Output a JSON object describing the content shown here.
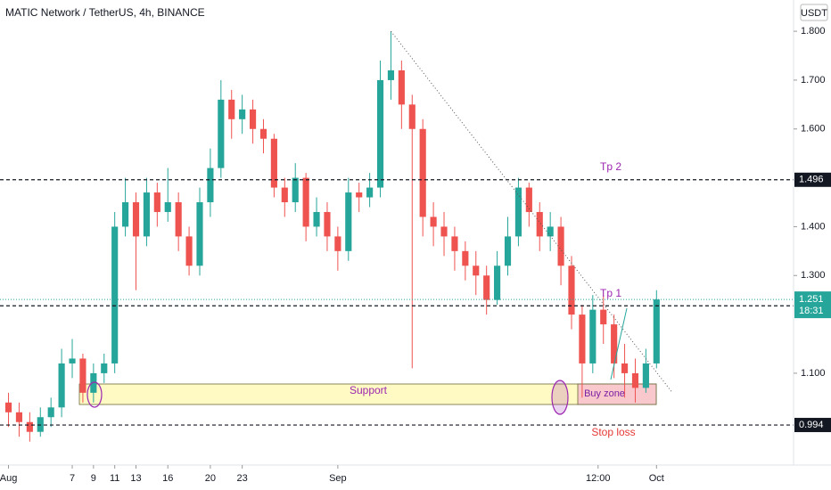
{
  "chart_data": {
    "type": "candlestick",
    "title": "MATIC Network / TetherUS, 4h, BINANCE",
    "currency": "USDT",
    "x": [
      1,
      2,
      3,
      4,
      5,
      6,
      7,
      8,
      9,
      10,
      11,
      12,
      13,
      14,
      15,
      16,
      17,
      18,
      19,
      20,
      21,
      22,
      23,
      24,
      25,
      26,
      27,
      28,
      29,
      30,
      31,
      32,
      33,
      34,
      35,
      36,
      37,
      38,
      39,
      40,
      41,
      42,
      43,
      44,
      45,
      46,
      47,
      48,
      49,
      50,
      51,
      52,
      53,
      54,
      55,
      56,
      57,
      58,
      59,
      60,
      61,
      62
    ],
    "open": [
      1.04,
      1.02,
      1.0,
      0.98,
      1.01,
      1.03,
      1.12,
      1.13,
      1.06,
      1.1,
      1.12,
      1.4,
      1.45,
      1.38,
      1.47,
      1.43,
      1.45,
      1.38,
      1.32,
      1.45,
      1.52,
      1.66,
      1.62,
      1.64,
      1.6,
      1.58,
      1.48,
      1.45,
      1.5,
      1.4,
      1.43,
      1.38,
      1.35,
      1.47,
      1.46,
      1.48,
      1.7,
      1.72,
      1.65,
      1.6,
      1.42,
      1.4,
      1.38,
      1.35,
      1.32,
      1.3,
      1.25,
      1.32,
      1.38,
      1.48,
      1.43,
      1.38,
      1.4,
      1.32,
      1.22,
      1.12,
      1.23,
      1.2,
      1.12,
      1.1,
      1.07,
      1.12
    ],
    "high": [
      1.06,
      1.04,
      1.02,
      1.03,
      1.05,
      1.15,
      1.17,
      1.14,
      1.12,
      1.14,
      1.43,
      1.5,
      1.47,
      1.5,
      1.49,
      1.52,
      1.47,
      1.4,
      1.48,
      1.56,
      1.7,
      1.68,
      1.67,
      1.66,
      1.62,
      1.59,
      1.5,
      1.53,
      1.51,
      1.46,
      1.45,
      1.4,
      1.5,
      1.49,
      1.51,
      1.74,
      1.8,
      1.74,
      1.67,
      1.62,
      1.45,
      1.43,
      1.4,
      1.37,
      1.35,
      1.32,
      1.35,
      1.42,
      1.5,
      1.49,
      1.45,
      1.43,
      1.42,
      1.34,
      1.24,
      1.26,
      1.26,
      1.22,
      1.16,
      1.13,
      1.15,
      1.27
    ],
    "low": [
      0.99,
      0.97,
      0.96,
      0.97,
      0.99,
      1.01,
      1.09,
      1.04,
      1.04,
      1.08,
      1.1,
      1.38,
      1.27,
      1.36,
      1.4,
      1.41,
      1.35,
      1.3,
      1.3,
      1.42,
      1.5,
      1.58,
      1.59,
      1.57,
      1.55,
      1.46,
      1.42,
      1.43,
      1.37,
      1.38,
      1.35,
      1.31,
      1.33,
      1.43,
      1.44,
      1.46,
      1.66,
      1.6,
      1.11,
      1.38,
      1.36,
      1.34,
      1.31,
      1.29,
      1.26,
      1.22,
      1.24,
      1.3,
      1.36,
      1.4,
      1.35,
      1.35,
      1.28,
      1.19,
      1.05,
      1.1,
      1.16,
      1.09,
      1.05,
      1.04,
      1.06,
      1.11
    ],
    "close": [
      1.02,
      1.0,
      0.98,
      1.01,
      1.03,
      1.12,
      1.13,
      1.06,
      1.1,
      1.12,
      1.4,
      1.45,
      1.38,
      1.47,
      1.43,
      1.45,
      1.38,
      1.32,
      1.45,
      1.52,
      1.66,
      1.62,
      1.64,
      1.6,
      1.58,
      1.48,
      1.45,
      1.5,
      1.4,
      1.43,
      1.38,
      1.35,
      1.47,
      1.46,
      1.48,
      1.7,
      1.72,
      1.65,
      1.6,
      1.42,
      1.4,
      1.38,
      1.35,
      1.32,
      1.3,
      1.25,
      1.32,
      1.38,
      1.48,
      1.43,
      1.38,
      1.4,
      1.32,
      1.22,
      1.12,
      1.23,
      1.2,
      1.12,
      1.1,
      1.07,
      1.12,
      1.251
    ],
    "up_color": "#26a69a",
    "down_color": "#ef5350",
    "xlim": [
      0.2,
      74.9
    ],
    "xticks": [
      {
        "value": 1,
        "label": "Aug"
      },
      9,
      16,
      23,
      {
        "value": 32,
        "label": "Sep"
      },
      7,
      13,
      20,
      {
        "value": 56.5,
        "label": "12:00"
      },
      {
        "value": 62,
        "label": "Oct"
      },
      11
    ],
    "ylim": [
      0.912,
      1.864
    ],
    "yticks": [
      {
        "value": 1.1,
        "label": "1.100"
      },
      {
        "value": 1.3,
        "label": "1.300"
      },
      {
        "value": 1.4,
        "label": "1.400"
      },
      {
        "value": 1.6,
        "label": "1.600"
      },
      {
        "value": 1.7,
        "label": "1.700"
      },
      {
        "value": 1.8,
        "label": "1.800"
      }
    ],
    "levels": [
      1.496,
      1.238,
      0.994
    ],
    "last_price": 1.251,
    "countdown": "18:31",
    "trendline": {
      "x": [
        37,
        63.5
      ],
      "y": [
        1.8,
        1.06
      ]
    },
    "annotations": {
      "tp2": "Tp 2",
      "tp1": "Tp 1",
      "support": "Support",
      "buy_zone": "Buy zone",
      "stop_loss": "Stop loss"
    }
  }
}
